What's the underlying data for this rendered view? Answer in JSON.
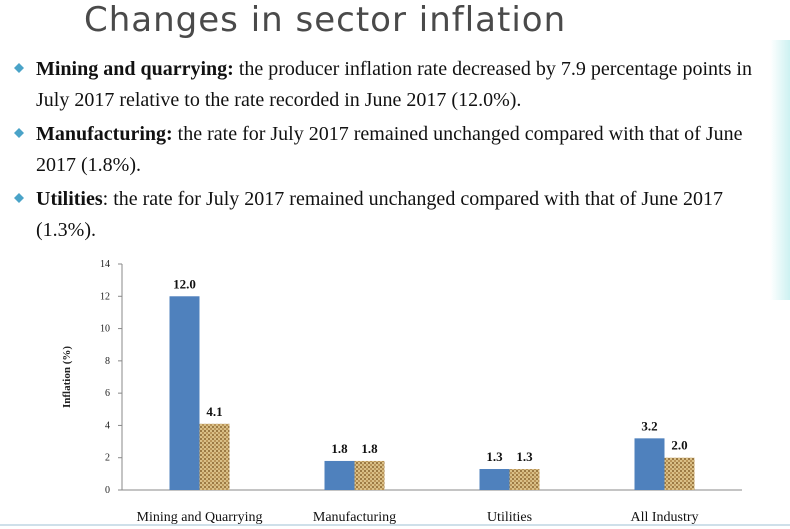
{
  "title": "Changes in sector inflation",
  "bullets": [
    {
      "term": "Mining and quarrying:",
      "text": " the producer inflation rate decreased by 7.9 percentage points in July 2017 relative to the rate recorded in  June 2017 (12.0%)."
    },
    {
      "term": "Manufacturing:",
      "text": " the rate for July 2017 remained unchanged compared with that of June  2017 (1.8%)."
    },
    {
      "term": "Utilities",
      "text": ": the rate for July 2017 remained unchanged compared with that of  June 2017 (1.3%)."
    }
  ],
  "colors": {
    "series1": "#4f81bd",
    "series2_base": "#c8a96e",
    "series2_dark": "#8c6d3a",
    "bullet": "#4aa3c8"
  },
  "chart_data": {
    "type": "bar",
    "categories": [
      "Mining and Quarrying",
      "Manufacturing",
      "Utilities",
      "All Industry"
    ],
    "series": [
      {
        "values": [
          12.0,
          1.8,
          1.3,
          3.2
        ]
      },
      {
        "values": [
          4.1,
          1.8,
          1.3,
          2.0
        ]
      }
    ],
    "data_labels": [
      [
        "12.0",
        "1.8",
        "1.3",
        "3.2"
      ],
      [
        "4.1",
        "1.8",
        "1.3",
        "2.0"
      ]
    ],
    "ylabel": "Inflation (%)",
    "ylim": [
      0,
      14
    ],
    "yticks": [
      "0",
      "2",
      "4",
      "6",
      "8",
      "10",
      "12",
      "14"
    ],
    "grid": false
  }
}
